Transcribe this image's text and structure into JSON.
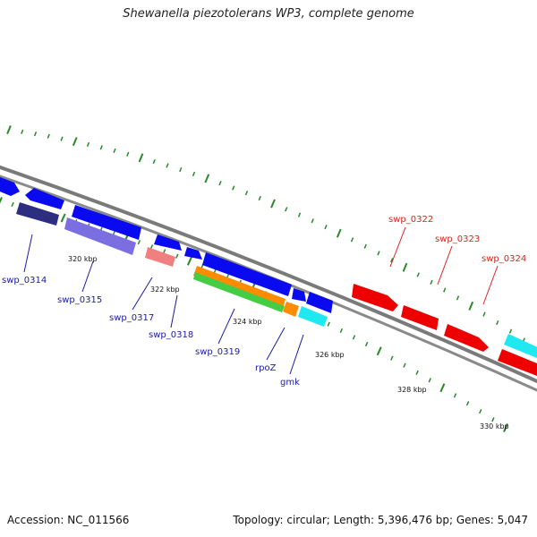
{
  "title": "Shewanella piezotolerans WP3, complete genome",
  "footer": {
    "accession": "Accession: NC_011566",
    "summary": "Topology: circular; Length: 5,396,476 bp; Genes: 5,047"
  },
  "scale_labels": [
    "320 kbp",
    "322 kbp",
    "324 kbp",
    "326 kbp",
    "328 kbp",
    "330 kbp"
  ],
  "gene_labels": {
    "forward": [
      "swp_0322",
      "swp_0323",
      "swp_0324"
    ],
    "reverse": [
      "swp_0314",
      "swp_0315",
      "swp_0317",
      "swp_0318",
      "swp_0319",
      "rpoZ",
      "gmk"
    ]
  },
  "colors": {
    "backbone": "#7a7a7a",
    "tick": "#2a8a2a",
    "forward_label": "#e02020",
    "reverse_label": "#1a1aa8",
    "cds_blue": "#0a0af0",
    "cds_red": "#ee0000",
    "cds_cyan": "#20e8f0",
    "cds_purple": "#7a6ee0",
    "cds_navy": "#2e2e80",
    "cds_pink": "#f08080",
    "cds_orange": "#ff8c00",
    "cds_green": "#44cc44"
  }
}
